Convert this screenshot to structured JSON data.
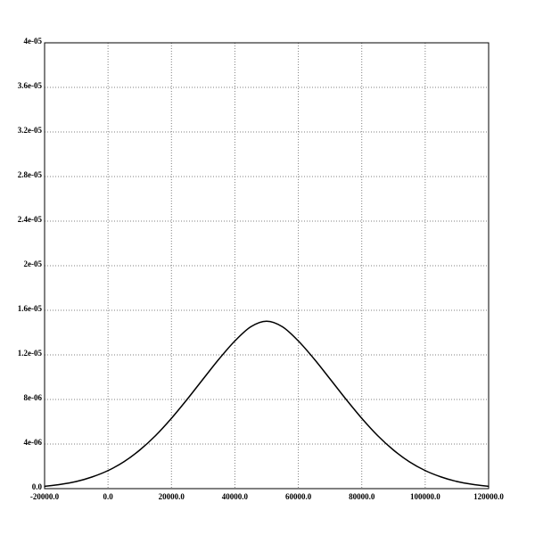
{
  "chart_data": {
    "type": "line",
    "title": "",
    "xlabel": "",
    "ylabel": "",
    "xlim": [
      -20000,
      120000
    ],
    "ylim": [
      0,
      4e-05
    ],
    "grid": true,
    "legend": "none",
    "x_ticks": [
      -20000,
      0,
      20000,
      40000,
      60000,
      80000,
      100000,
      120000
    ],
    "x_tick_labels": [
      "-20000.0",
      "0.0",
      "20000.0",
      "40000.0",
      "60000.0",
      "80000.0",
      "100000.0",
      "120000.0"
    ],
    "y_ticks": [
      0,
      4e-06,
      8e-06,
      1.2e-05,
      1.6e-05,
      2e-05,
      2.4e-05,
      2.8e-05,
      3.2e-05,
      3.6e-05,
      4e-05
    ],
    "y_tick_labels": [
      "0.0",
      "4e-06",
      "8e-06",
      "1.2e-05",
      "1.6e-05",
      "2e-05",
      "2.4e-05",
      "2.8e-05",
      "3.2e-05",
      "3.6e-05",
      "4e-05"
    ],
    "series": [
      {
        "color": "#000000",
        "x": [
          -20000,
          -15000,
          -10000,
          -5000,
          0,
          5000,
          10000,
          15000,
          20000,
          25000,
          30000,
          35000,
          40000,
          45000,
          50000,
          55000,
          60000,
          65000,
          70000,
          75000,
          80000,
          85000,
          90000,
          95000,
          100000,
          105000,
          110000,
          115000,
          120000
        ],
        "y": [
          2.1e-07,
          3.8e-07,
          6.4e-07,
          1.05e-06,
          1.62e-06,
          2.41e-06,
          3.46e-06,
          4.76e-06,
          6.31e-06,
          8.03e-06,
          9.84e-06,
          1.163e-05,
          1.325e-05,
          1.452e-05,
          1.502e-05,
          1.452e-05,
          1.325e-05,
          1.163e-05,
          9.84e-06,
          8.03e-06,
          6.31e-06,
          4.76e-06,
          3.46e-06,
          2.41e-06,
          1.62e-06,
          1.05e-06,
          6.4e-07,
          3.8e-07,
          2.1e-07
        ]
      }
    ]
  }
}
